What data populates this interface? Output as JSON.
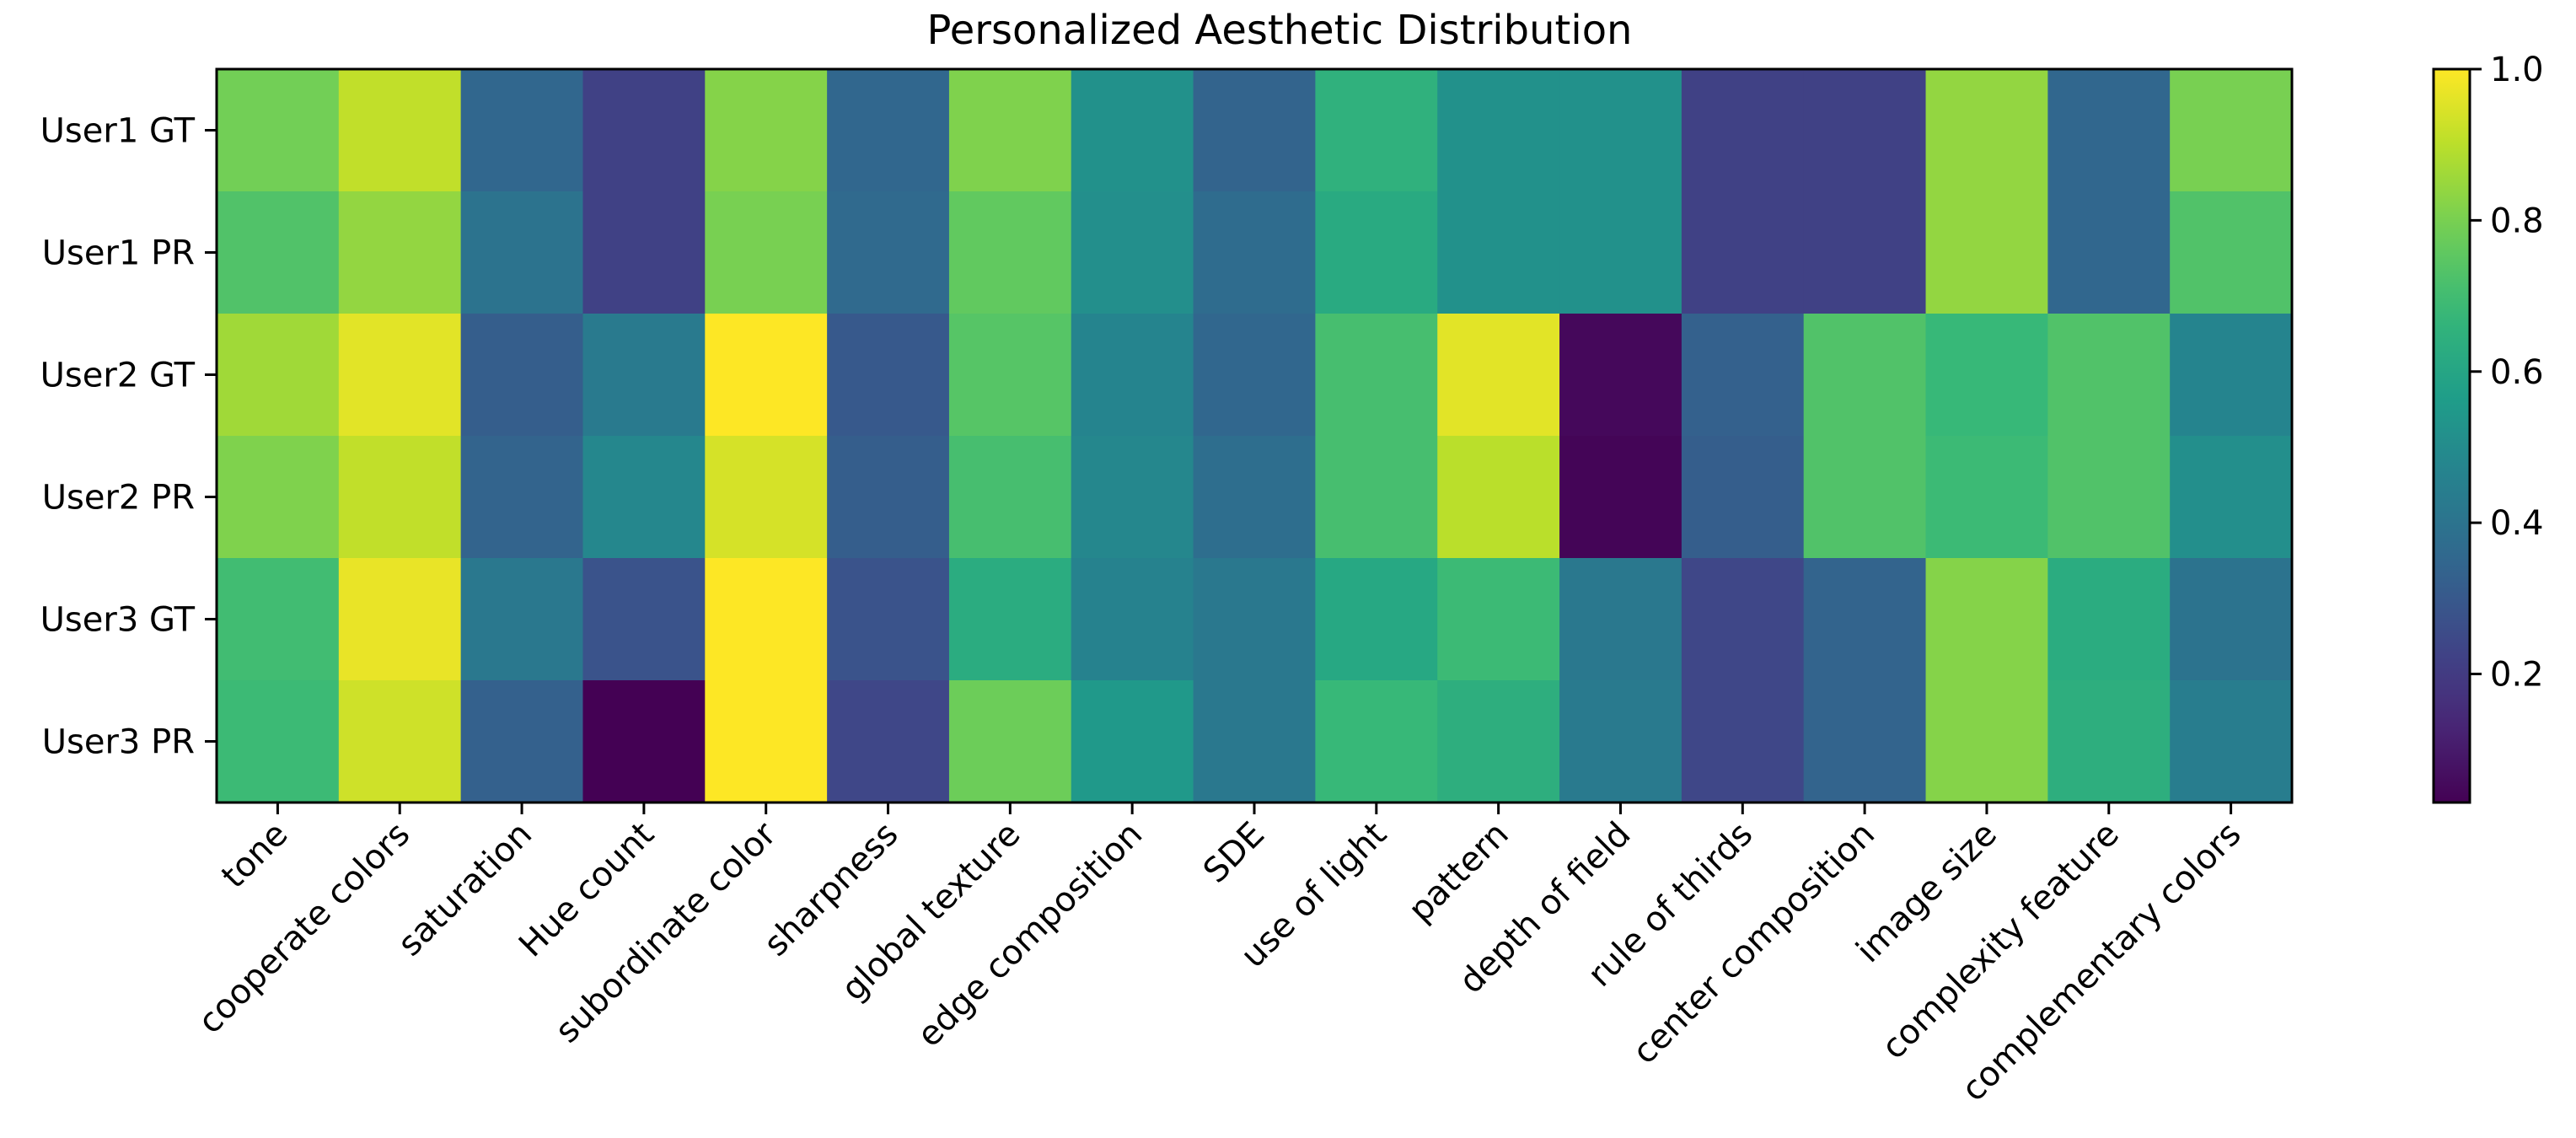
{
  "chart_data": {
    "type": "heatmap",
    "title": "Personalized Aesthetic Distribution",
    "xlabel": "",
    "ylabel": "",
    "rows": [
      "User1 GT",
      "User1 PR",
      "User2 GT",
      "User2 PR",
      "User3 GT",
      "User3 PR"
    ],
    "columns": [
      "tone",
      "cooperate colors",
      "saturation",
      "Hue count",
      "subordinate color",
      "sharpness",
      "global texture",
      "edge composition",
      "SDE",
      "use of light",
      "pattern",
      "depth of field",
      "rule of thirds",
      "center composition",
      "image size",
      "complexity feature",
      "complementary colors"
    ],
    "values": [
      [
        0.79,
        0.91,
        0.35,
        0.22,
        0.82,
        0.35,
        0.81,
        0.52,
        0.34,
        0.65,
        0.52,
        0.52,
        0.22,
        0.22,
        0.84,
        0.35,
        0.8
      ],
      [
        0.73,
        0.84,
        0.4,
        0.22,
        0.8,
        0.36,
        0.76,
        0.51,
        0.37,
        0.62,
        0.52,
        0.52,
        0.22,
        0.22,
        0.84,
        0.35,
        0.73
      ],
      [
        0.86,
        0.96,
        0.32,
        0.43,
        1.0,
        0.3,
        0.74,
        0.47,
        0.35,
        0.71,
        0.96,
        0.05,
        0.33,
        0.73,
        0.68,
        0.73,
        0.47
      ],
      [
        0.81,
        0.91,
        0.34,
        0.48,
        0.94,
        0.32,
        0.71,
        0.48,
        0.38,
        0.71,
        0.9,
        0.04,
        0.32,
        0.73,
        0.69,
        0.73,
        0.51
      ],
      [
        0.7,
        0.97,
        0.42,
        0.28,
        1.0,
        0.28,
        0.63,
        0.46,
        0.42,
        0.61,
        0.69,
        0.42,
        0.24,
        0.34,
        0.82,
        0.63,
        0.4
      ],
      [
        0.69,
        0.93,
        0.33,
        0.03,
        1.0,
        0.24,
        0.78,
        0.55,
        0.42,
        0.68,
        0.64,
        0.43,
        0.24,
        0.34,
        0.82,
        0.64,
        0.44
      ]
    ],
    "vmin": 0.03,
    "vmax": 1.0,
    "colormap": "viridis",
    "colorbar": {
      "ticks": [
        0.2,
        0.4,
        0.6,
        0.8,
        1.0
      ],
      "tick_labels": [
        "0.2",
        "0.4",
        "0.6",
        "0.8",
        "1.0"
      ]
    }
  }
}
